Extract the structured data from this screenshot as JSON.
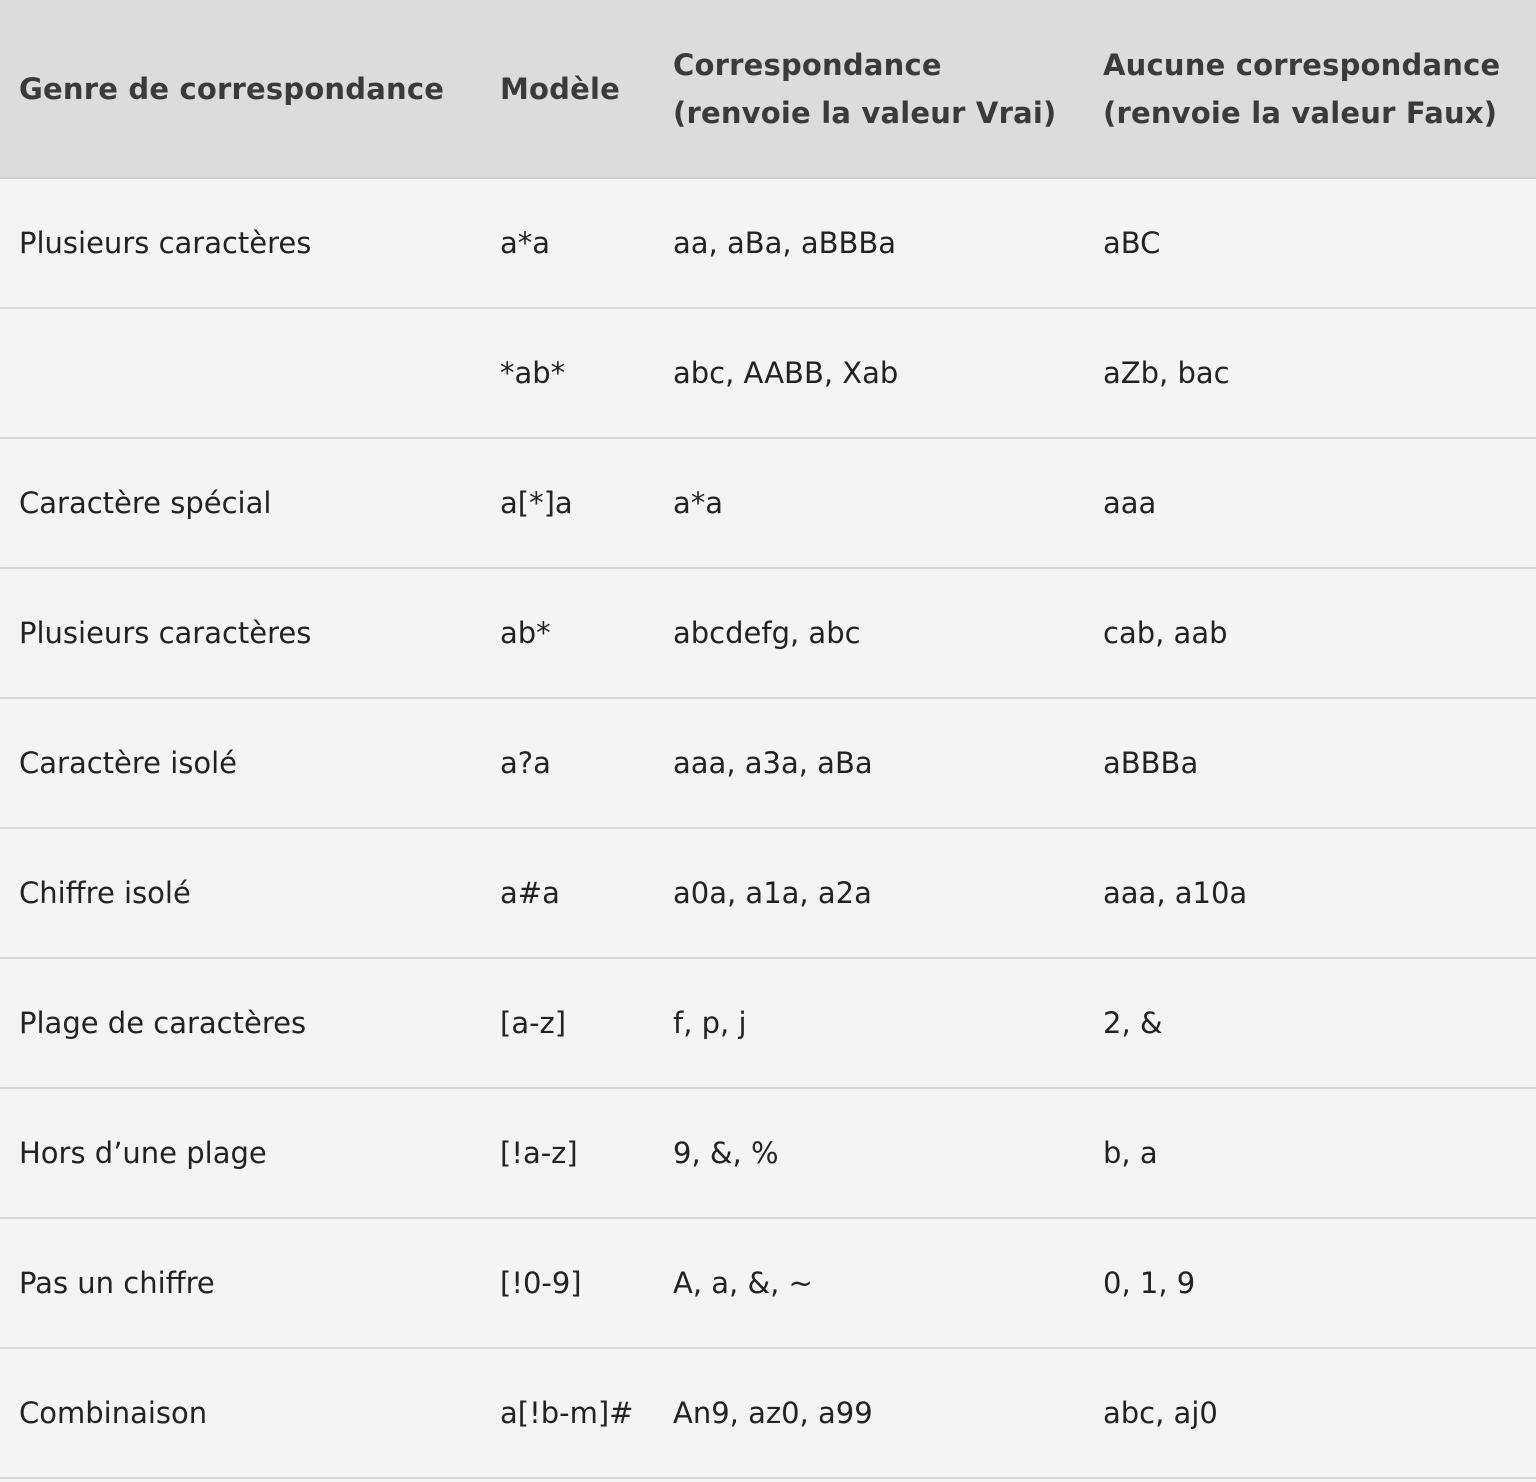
{
  "headers": {
    "col1": "Genre de correspondance",
    "col2": "Modèle",
    "col3_line1": "Correspondance",
    "col3_line2": "(renvoie la valeur Vrai)",
    "col4_line1": "Aucune correspondance",
    "col4_line2": "(renvoie la valeur Faux)"
  },
  "rows": [
    {
      "type": "Plusieurs caractères",
      "pattern": "a*a",
      "match": "aa, aBa, aBBBa",
      "nomatch": "aBC"
    },
    {
      "type": "",
      "pattern": "*ab*",
      "match": "abc, AABB, Xab",
      "nomatch": "aZb, bac"
    },
    {
      "type": "Caractère spécial",
      "pattern": "a[*]a",
      "match": "a*a",
      "nomatch": "aaa"
    },
    {
      "type": "Plusieurs caractères",
      "pattern": "ab*",
      "match": "abcdefg, abc",
      "nomatch": "cab, aab"
    },
    {
      "type": "Caractère isolé",
      "pattern": "a?a",
      "match": "aaa, a3a, aBa",
      "nomatch": "aBBBa"
    },
    {
      "type": "Chiffre isolé",
      "pattern": "a#a",
      "match": "a0a, a1a, a2a",
      "nomatch": "aaa, a10a"
    },
    {
      "type": "Plage de caractères",
      "pattern": "[a-z]",
      "match": "f, p, j",
      "nomatch": "2, &"
    },
    {
      "type": "Hors d’une plage",
      "pattern": "[!a-z]",
      "match": "9, &, %",
      "nomatch": "b, a"
    },
    {
      "type": "Pas un chiffre",
      "pattern": "[!0-9]",
      "match": "A, a, &, ~",
      "nomatch": "0, 1, 9"
    },
    {
      "type": "Combinaison",
      "pattern": "a[!b-m]#",
      "match": "An9, az0, a99",
      "nomatch": "abc, aj0"
    }
  ]
}
